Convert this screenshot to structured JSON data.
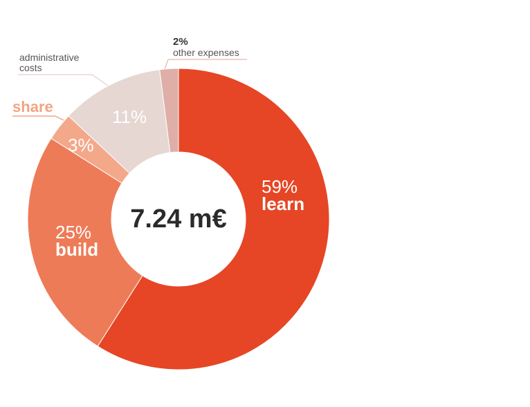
{
  "chart_data": {
    "type": "pie",
    "center_label": "7.24 m€",
    "slices": [
      {
        "percent_label": "59%",
        "name": "learn",
        "value": 59,
        "color": "#e64625"
      },
      {
        "percent_label": "25%",
        "name": "build",
        "value": 25,
        "color": "#ee7b57"
      },
      {
        "percent_label": "3%",
        "name": "share",
        "value": 3,
        "color": "#f3a88a"
      },
      {
        "percent_label": "11%",
        "name": "administrative costs",
        "value": 11,
        "color": "#e6d7d3"
      },
      {
        "percent_label": "2%",
        "name": "other expenses",
        "value": 2,
        "color": "#dfaea7"
      }
    ]
  }
}
